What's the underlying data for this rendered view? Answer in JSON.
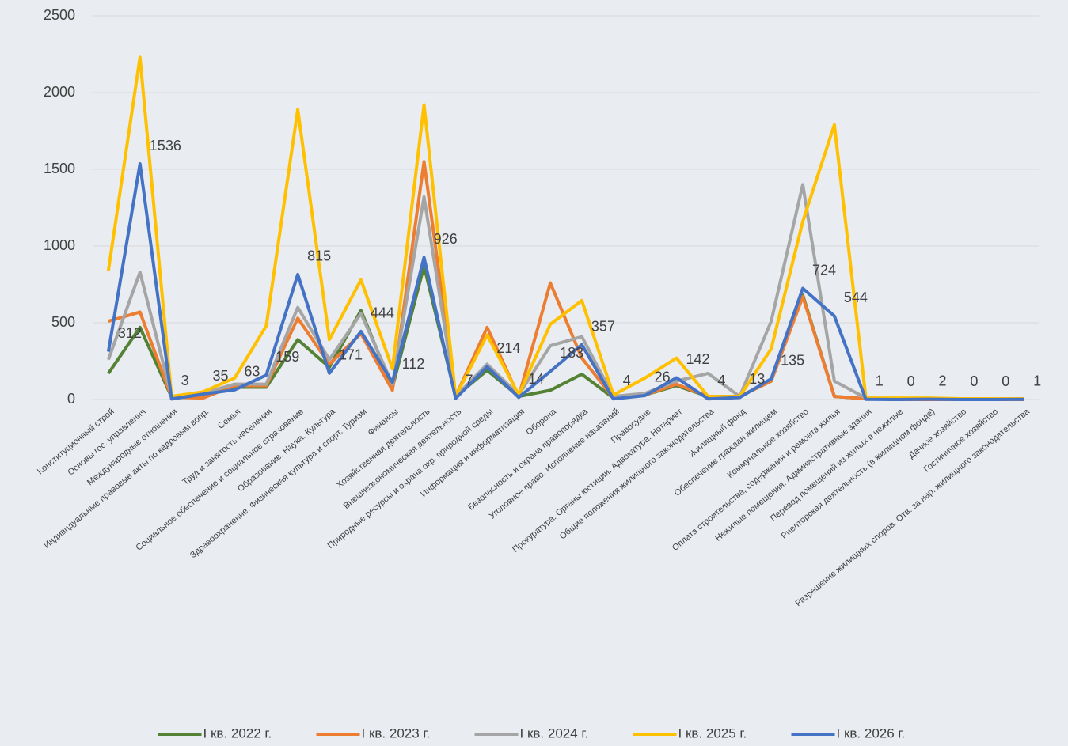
{
  "chart_data": {
    "type": "line",
    "categories": [
      "Конституционный строй",
      "Основы гос. управления",
      "Международные отношения",
      "Индивидуальные правовые акты по кадровым вопр.",
      "Семья",
      "Труд и занятость населения",
      "Социальное обеспечение и социальное страхование",
      "Образование. Наука. Культура",
      "Здравоохранение. Физическая культура и спорт. Туризм",
      "Финансы",
      "Хозяйственная деятельность",
      "Внешнеэкономическая деятельность",
      "Природные ресурсы и охрана окр. природной среды",
      "Информация и информатизация",
      "Оборона",
      "Безопасность и охрана правопорядка",
      "Уголовное право. Исполнение наказаний",
      "Правосудие",
      "Прокуратура. Органы юстиции. Адвокатура. Нотариат",
      "Общие положения жилищного законодательства",
      "Жилищный фонд",
      "Обеспечение граждан жилищем",
      "Коммунальное хозяйство",
      "Оплата строительства, содержания и ремонта жилья",
      "Нежилые помещения. Административные здания",
      "Перевод помещений из жилых в нежилые",
      "Риелторская деятельность (в жилищном фонде)",
      "Дачное хозяйство",
      "Гостиничное хозяйство",
      "Разрешение жилищных споров. Отв. за нар. жилищного законодательства"
    ],
    "series": [
      {
        "name": "I кв. 2022 г.",
        "color": "#548235",
        "values": [
          170,
          470,
          15,
          40,
          80,
          80,
          390,
          210,
          580,
          80,
          870,
          20,
          190,
          20,
          60,
          165,
          10,
          30,
          90,
          20,
          20,
          120,
          680,
          20,
          5,
          0,
          0,
          0,
          0,
          0
        ]
      },
      {
        "name": "I кв. 2023 г.",
        "color": "#ed7d31",
        "values": [
          510,
          570,
          15,
          10,
          90,
          90,
          530,
          230,
          430,
          60,
          1550,
          20,
          470,
          20,
          760,
          270,
          10,
          30,
          100,
          20,
          20,
          120,
          670,
          20,
          5,
          0,
          0,
          0,
          0,
          0
        ]
      },
      {
        "name": "I кв. 2024 г.",
        "color": "#a5a5a5",
        "values": [
          260,
          830,
          20,
          40,
          100,
          100,
          600,
          260,
          560,
          100,
          1320,
          20,
          230,
          30,
          350,
          410,
          20,
          40,
          120,
          170,
          20,
          510,
          1400,
          120,
          10,
          5,
          5,
          5,
          5,
          5
        ]
      },
      {
        "name": "I кв. 2025 г.",
        "color": "#ffc000",
        "values": [
          840,
          2230,
          20,
          50,
          140,
          480,
          1890,
          390,
          780,
          200,
          1920,
          20,
          420,
          30,
          490,
          645,
          30,
          140,
          270,
          20,
          20,
          330,
          1160,
          1790,
          10,
          10,
          10,
          5,
          5,
          5
        ]
      },
      {
        "name": "I кв. 2026 г.",
        "color": "#4472c4",
        "values": [
          312,
          1536,
          3,
          35,
          63,
          159,
          815,
          171,
          444,
          112,
          926,
          7,
          214,
          14,
          183,
          357,
          4,
          26,
          142,
          4,
          13,
          135,
          724,
          544,
          1,
          0,
          2,
          0,
          0,
          1
        ],
        "data_labels": true
      }
    ],
    "ylim": [
      0,
      2500
    ],
    "yticks": [
      0,
      500,
      1000,
      1500,
      2000,
      2500
    ],
    "grid": true,
    "legend": "bottom"
  }
}
